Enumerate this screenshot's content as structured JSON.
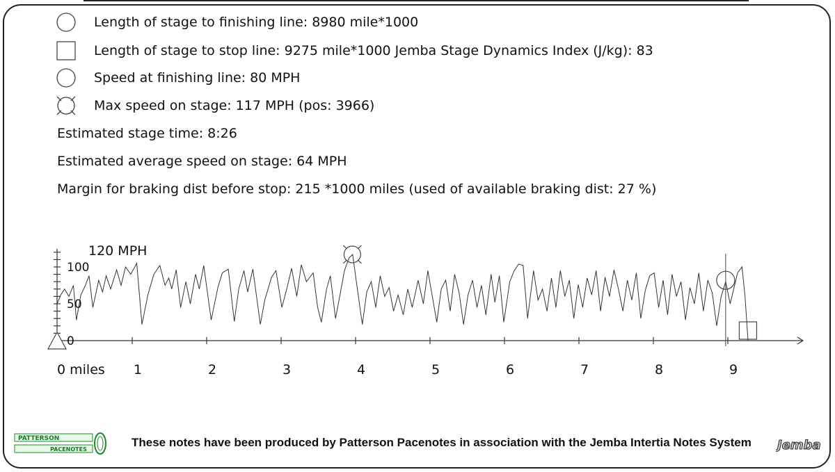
{
  "legend": {
    "finish_length": "Length of stage to finishing line: 8980 mile*1000",
    "stop_length": "Length of stage to stop line: 9275 mile*1000 Jemba Stage Dynamics Index (J/kg): 83",
    "finish_speed": "Speed at finishing line: 80 MPH",
    "max_speed": "Max speed on stage: 117 MPH (pos: 3966)"
  },
  "info": {
    "stage_time": "Estimated stage time: 8:26",
    "avg_speed": "Estimated average speed on stage: 64 MPH",
    "braking_margin": "Margin for braking dist before stop: 215 *1000 miles (used of available braking dist: 27 %)"
  },
  "footer": {
    "credit": "These notes have been produced by Patterson Pacenotes in association with the Jemba Intertia Notes System",
    "logo_left": [
      "PATTERSON",
      "PACENOTES"
    ],
    "logo_right": "Jemba"
  },
  "chart_data": {
    "type": "line",
    "title": "",
    "xlabel": "",
    "ylabel": "120 MPH",
    "x_unit_label": "0 miles",
    "x_ticks": [
      0,
      1,
      2,
      3,
      4,
      5,
      6,
      7,
      8,
      9
    ],
    "x_tick_labels": [
      "0 miles",
      "1",
      "2",
      "3",
      "4",
      "5",
      "6",
      "7",
      "8",
      "9"
    ],
    "y_ticks": [
      0,
      50,
      100
    ],
    "y_tick_labels": [
      "0",
      "50",
      "100"
    ],
    "xlim": [
      0,
      10
    ],
    "ylim": [
      0,
      120
    ],
    "markers": {
      "max_speed": {
        "x": 3.966,
        "y": 117,
        "symbol": "circle-x"
      },
      "finish": {
        "x": 8.98,
        "y": 80,
        "symbol": "circle"
      },
      "stop": {
        "x": 9.275,
        "y": 0,
        "symbol": "square"
      },
      "start": {
        "x": 0,
        "y": 0,
        "symbol": "triangle"
      }
    },
    "series": [
      {
        "values": [
          [
            0.0,
            50
          ],
          [
            0.05,
            62
          ],
          [
            0.1,
            70
          ],
          [
            0.16,
            60
          ],
          [
            0.22,
            75
          ],
          [
            0.26,
            28
          ],
          [
            0.32,
            62
          ],
          [
            0.38,
            75
          ],
          [
            0.43,
            88
          ],
          [
            0.48,
            45
          ],
          [
            0.56,
            82
          ],
          [
            0.61,
            66
          ],
          [
            0.66,
            88
          ],
          [
            0.72,
            70
          ],
          [
            0.8,
            96
          ],
          [
            0.86,
            75
          ],
          [
            0.92,
            100
          ],
          [
            0.99,
            90
          ],
          [
            1.07,
            105
          ],
          [
            1.14,
            22
          ],
          [
            1.22,
            62
          ],
          [
            1.3,
            90
          ],
          [
            1.38,
            102
          ],
          [
            1.45,
            75
          ],
          [
            1.5,
            85
          ],
          [
            1.54,
            70
          ],
          [
            1.6,
            96
          ],
          [
            1.66,
            45
          ],
          [
            1.73,
            80
          ],
          [
            1.79,
            50
          ],
          [
            1.86,
            90
          ],
          [
            1.91,
            70
          ],
          [
            1.97,
            102
          ],
          [
            2.07,
            28
          ],
          [
            2.16,
            72
          ],
          [
            2.22,
            92
          ],
          [
            2.3,
            97
          ],
          [
            2.38,
            26
          ],
          [
            2.44,
            70
          ],
          [
            2.51,
            95
          ],
          [
            2.56,
            66
          ],
          [
            2.63,
            97
          ],
          [
            2.73,
            22
          ],
          [
            2.79,
            55
          ],
          [
            2.88,
            86
          ],
          [
            2.94,
            95
          ],
          [
            3.02,
            45
          ],
          [
            3.09,
            72
          ],
          [
            3.15,
            98
          ],
          [
            3.22,
            60
          ],
          [
            3.28,
            103
          ],
          [
            3.35,
            80
          ],
          [
            3.44,
            92
          ],
          [
            3.5,
            45
          ],
          [
            3.55,
            25
          ],
          [
            3.62,
            70
          ],
          [
            3.67,
            88
          ],
          [
            3.74,
            30
          ],
          [
            3.8,
            62
          ],
          [
            3.86,
            95
          ],
          [
            3.92,
            112
          ],
          [
            3.97,
            117
          ],
          [
            4.02,
            80
          ],
          [
            4.1,
            22
          ],
          [
            4.16,
            66
          ],
          [
            4.22,
            80
          ],
          [
            4.28,
            45
          ],
          [
            4.34,
            88
          ],
          [
            4.4,
            60
          ],
          [
            4.46,
            72
          ],
          [
            4.52,
            40
          ],
          [
            4.58,
            62
          ],
          [
            4.65,
            35
          ],
          [
            4.71,
            70
          ],
          [
            4.77,
            45
          ],
          [
            4.85,
            82
          ],
          [
            4.92,
            50
          ],
          [
            4.98,
            95
          ],
          [
            5.04,
            60
          ],
          [
            5.1,
            25
          ],
          [
            5.16,
            70
          ],
          [
            5.22,
            82
          ],
          [
            5.28,
            40
          ],
          [
            5.34,
            90
          ],
          [
            5.4,
            65
          ],
          [
            5.46,
            22
          ],
          [
            5.52,
            62
          ],
          [
            5.58,
            82
          ],
          [
            5.64,
            45
          ],
          [
            5.7,
            75
          ],
          [
            5.76,
            35
          ],
          [
            5.83,
            90
          ],
          [
            5.88,
            52
          ],
          [
            5.94,
            88
          ],
          [
            6.0,
            25
          ],
          [
            6.08,
            80
          ],
          [
            6.14,
            95
          ],
          [
            6.2,
            104
          ],
          [
            6.26,
            102
          ],
          [
            6.32,
            30
          ],
          [
            6.4,
            95
          ],
          [
            6.46,
            55
          ],
          [
            6.52,
            70
          ],
          [
            6.58,
            40
          ],
          [
            6.64,
            85
          ],
          [
            6.7,
            45
          ],
          [
            6.76,
            95
          ],
          [
            6.82,
            60
          ],
          [
            6.88,
            82
          ],
          [
            6.94,
            30
          ],
          [
            7.0,
            76
          ],
          [
            7.06,
            45
          ],
          [
            7.12,
            85
          ],
          [
            7.18,
            62
          ],
          [
            7.24,
            95
          ],
          [
            7.3,
            40
          ],
          [
            7.36,
            86
          ],
          [
            7.42,
            60
          ],
          [
            7.48,
            96
          ],
          [
            7.54,
            70
          ],
          [
            7.6,
            40
          ],
          [
            7.66,
            82
          ],
          [
            7.72,
            55
          ],
          [
            7.78,
            92
          ],
          [
            7.84,
            30
          ],
          [
            7.9,
            68
          ],
          [
            7.96,
            88
          ],
          [
            8.02,
            92
          ],
          [
            8.08,
            45
          ],
          [
            8.14,
            82
          ],
          [
            8.2,
            35
          ],
          [
            8.26,
            90
          ],
          [
            8.32,
            60
          ],
          [
            8.38,
            80
          ],
          [
            8.44,
            28
          ],
          [
            8.5,
            72
          ],
          [
            8.56,
            50
          ],
          [
            8.62,
            92
          ],
          [
            8.68,
            40
          ],
          [
            8.74,
            82
          ],
          [
            8.8,
            65
          ],
          [
            8.86,
            20
          ],
          [
            8.92,
            60
          ],
          [
            8.98,
            80
          ],
          [
            9.04,
            50
          ],
          [
            9.1,
            75
          ],
          [
            9.14,
            92
          ],
          [
            9.2,
            100
          ],
          [
            9.24,
            60
          ],
          [
            9.28,
            0
          ]
        ]
      }
    ]
  }
}
